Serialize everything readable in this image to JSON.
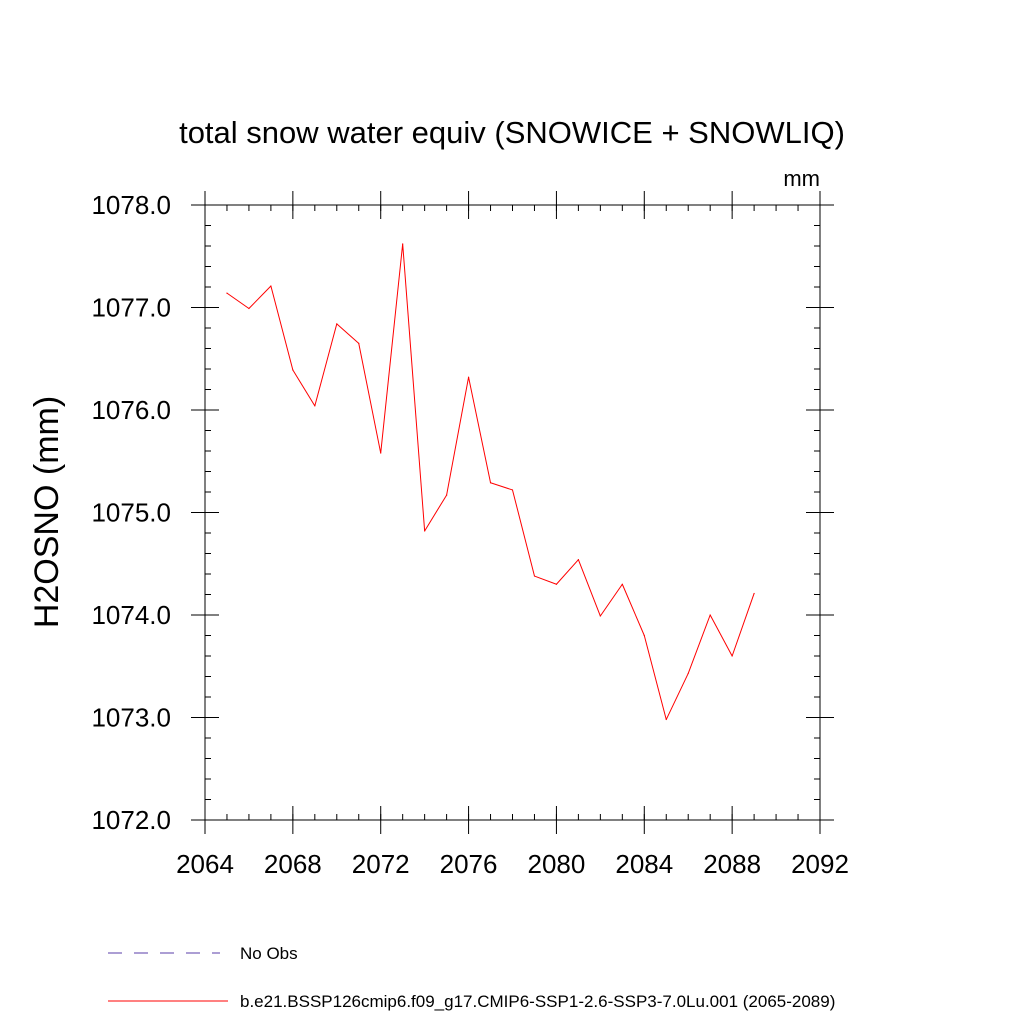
{
  "chart_data": {
    "type": "line",
    "title": "total snow water equiv (SNOWICE + SNOWLIQ)",
    "units": "mm",
    "xlabel": "",
    "ylabel": "H2OSNO  (mm)",
    "xlim": [
      2064,
      2092
    ],
    "ylim": [
      1072.0,
      1078.0
    ],
    "xticks": [
      2064,
      2068,
      2072,
      2076,
      2080,
      2084,
      2088,
      2092
    ],
    "xtick_labels": [
      "2064",
      "2068",
      "2072",
      "2076",
      "2080",
      "2084",
      "2088",
      "2092"
    ],
    "yticks": [
      1072.0,
      1073.0,
      1074.0,
      1075.0,
      1076.0,
      1077.0,
      1078.0
    ],
    "ytick_labels": [
      "1072.0",
      "1073.0",
      "1074.0",
      "1075.0",
      "1076.0",
      "1077.0",
      "1078.0"
    ],
    "x": [
      2065,
      2066,
      2067,
      2068,
      2069,
      2070,
      2071,
      2072,
      2073,
      2074,
      2075,
      2076,
      2077,
      2078,
      2079,
      2080,
      2081,
      2082,
      2083,
      2084,
      2085,
      2086,
      2087,
      2088,
      2089
    ],
    "series": [
      {
        "name": "b.e21.BSSP126cmip6.f09_g17.CMIP6-SSP1-2.6-SSP3-7.0Lu.001 (2065-2089)",
        "color": "#ff0000",
        "style": "solid",
        "values": [
          1077.14,
          1076.99,
          1077.21,
          1076.39,
          1076.04,
          1076.84,
          1076.65,
          1075.58,
          1077.62,
          1074.82,
          1075.17,
          1076.32,
          1075.29,
          1075.22,
          1074.38,
          1074.3,
          1074.54,
          1073.99,
          1074.3,
          1073.8,
          1072.98,
          1073.43,
          1074.0,
          1073.6,
          1074.21
        ]
      }
    ],
    "legend": [
      {
        "label": "No Obs",
        "color": "#5a3ea8",
        "style": "dashed"
      },
      {
        "label": "b.e21.BSSP126cmip6.f09_g17.CMIP6-SSP1-2.6-SSP3-7.0Lu.001 (2065-2089)",
        "color": "#ff0000",
        "style": "solid"
      }
    ],
    "legend_position": "bottom-left",
    "grid": false
  }
}
